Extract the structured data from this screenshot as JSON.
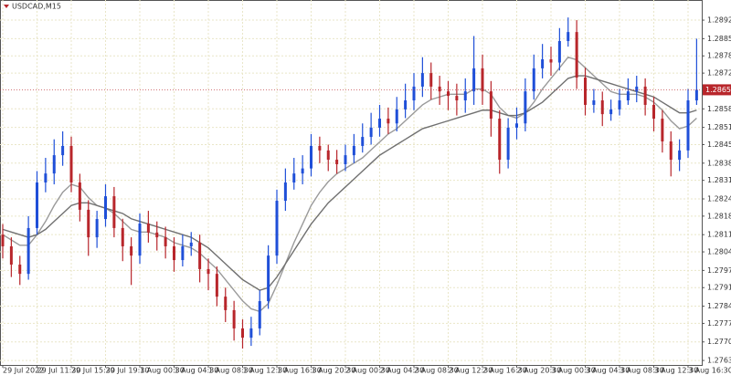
{
  "chart_data": {
    "type": "ohlc",
    "title": "USDCAD,M15",
    "categories": [
      "29 Jul 2022",
      null,
      null,
      null,
      "29 Jul 11:30",
      null,
      null,
      null,
      "29 Jul 15:30",
      null,
      null,
      null,
      "29 Jul 19:30",
      null,
      null,
      null,
      "1 Aug 00:30",
      null,
      null,
      null,
      "1 Aug 04:30",
      null,
      null,
      null,
      "1 Aug 08:30",
      null,
      null,
      null,
      "1 Aug 12:30",
      null,
      null,
      null,
      "1 Aug 16:30",
      null,
      null,
      null,
      "1 Aug 20:30",
      null,
      null,
      null,
      "2 Aug 00:30",
      null,
      null,
      null,
      "2 Aug 04:30",
      null,
      null,
      null,
      "2 Aug 08:30",
      null,
      null,
      null,
      "2 Aug 12:30",
      null,
      null,
      null,
      "2 Aug 16:30",
      null,
      null,
      null,
      "2 Aug 20:30",
      null,
      null,
      null,
      "3 Aug 00:30",
      null,
      null,
      null,
      "3 Aug 04:30",
      null,
      null,
      null,
      "3 Aug 08:30",
      null,
      null,
      null,
      "3 Aug 12:30",
      null,
      null,
      null,
      "3 Aug 16:30",
      null
    ],
    "open": [
      1.2811,
      1.28066,
      1.27997,
      1.27962,
      1.28135,
      1.28307,
      1.28341,
      1.2841,
      1.28445,
      1.28307,
      1.28204,
      1.281,
      1.28169,
      1.28255,
      1.28135,
      1.28066,
      1.28031,
      1.28152,
      1.28118,
      1.281,
      1.28066,
      1.28014,
      1.28066,
      1.2808,
      1.2798,
      1.27962,
      1.27876,
      1.27825,
      1.27756,
      1.27721,
      1.27756,
      1.27859,
      1.28031,
      1.28238,
      1.28307,
      1.28341,
      1.2836,
      1.28445,
      1.28428,
      1.28393,
      1.28376,
      1.2841,
      1.28445,
      1.28479,
      1.28514,
      1.28548,
      1.2853,
      1.28583,
      1.28617,
      1.28669,
      1.2872,
      1.28669,
      1.28651,
      1.28634,
      1.28617,
      1.28651,
      1.28738,
      1.28651,
      1.28548,
      1.28393,
      1.28514,
      1.2853,
      1.28651,
      1.28738,
      1.28772,
      1.2876,
      1.28841,
      1.28875,
      1.28703,
      1.286,
      1.28617,
      1.28565,
      1.28583,
      1.28617,
      1.28651,
      1.28669,
      1.286,
      1.28548,
      1.28462,
      1.28393,
      1.28428,
      1.28617
    ],
    "high": [
      1.2815,
      1.281,
      1.2803,
      1.2818,
      1.2835,
      1.284,
      1.2847,
      1.285,
      1.2848,
      1.2834,
      1.2824,
      1.282,
      1.283,
      1.2829,
      1.2817,
      1.281,
      1.2819,
      1.282,
      1.2816,
      1.2814,
      1.281,
      1.2811,
      1.2812,
      1.2811,
      1.2802,
      1.2799,
      1.2791,
      1.2786,
      1.2779,
      1.278,
      1.279,
      1.2807,
      1.2828,
      1.2836,
      1.284,
      1.2841,
      1.2849,
      1.2848,
      1.2845,
      1.2843,
      1.2845,
      1.2849,
      1.2853,
      1.2857,
      1.286,
      1.2859,
      1.2863,
      1.2868,
      1.2872,
      1.2878,
      1.2876,
      1.2871,
      1.2869,
      1.2868,
      1.287,
      1.2886,
      1.2879,
      1.2869,
      1.2858,
      1.2855,
      1.2859,
      1.287,
      1.2879,
      1.2883,
      1.2882,
      1.2889,
      1.2893,
      1.2892,
      1.2874,
      1.2866,
      1.2865,
      1.2862,
      1.2866,
      1.287,
      1.2871,
      1.287,
      1.2863,
      1.2858,
      1.285,
      1.2847,
      1.2866,
      1.2885
    ],
    "low": [
      1.2802,
      1.2795,
      1.2792,
      1.2794,
      1.2811,
      1.2827,
      1.283,
      1.2837,
      1.2827,
      1.2816,
      1.2803,
      1.2806,
      1.2814,
      1.281,
      1.2801,
      1.2792,
      1.28,
      1.2808,
      1.2805,
      1.2802,
      1.2797,
      1.2799,
      1.2803,
      1.2793,
      1.279,
      1.2784,
      1.2778,
      1.2771,
      1.2768,
      1.2769,
      1.2773,
      1.2783,
      1.28,
      1.282,
      1.2828,
      1.283,
      1.2833,
      1.2838,
      1.2835,
      1.2834,
      1.2835,
      1.2838,
      1.2842,
      1.2845,
      1.2848,
      1.2849,
      1.285,
      1.2855,
      1.2858,
      1.2863,
      1.2862,
      1.286,
      1.2858,
      1.2856,
      1.2857,
      1.286,
      1.286,
      1.2848,
      1.2834,
      1.2836,
      1.2847,
      1.285,
      1.2862,
      1.287,
      1.2871,
      1.2873,
      1.2882,
      1.2866,
      1.2856,
      1.2857,
      1.2852,
      1.2854,
      1.2856,
      1.286,
      1.2861,
      1.2856,
      1.285,
      1.2842,
      1.2833,
      1.2835,
      1.284,
      1.286
    ],
    "close": [
      1.28066,
      1.27997,
      1.27962,
      1.28135,
      1.28307,
      1.28341,
      1.2841,
      1.28445,
      1.28307,
      1.28204,
      1.281,
      1.28169,
      1.28255,
      1.28135,
      1.28066,
      1.28031,
      1.28152,
      1.28118,
      1.281,
      1.28066,
      1.28014,
      1.28066,
      1.2808,
      1.2798,
      1.27962,
      1.27876,
      1.27825,
      1.27756,
      1.27721,
      1.27756,
      1.27859,
      1.28031,
      1.28238,
      1.28307,
      1.28341,
      1.2836,
      1.28445,
      1.28428,
      1.28393,
      1.28376,
      1.2841,
      1.28445,
      1.28479,
      1.28514,
      1.28548,
      1.2853,
      1.28583,
      1.28617,
      1.28669,
      1.2872,
      1.28669,
      1.28651,
      1.28634,
      1.28617,
      1.28651,
      1.28738,
      1.28651,
      1.28548,
      1.28393,
      1.28514,
      1.2853,
      1.28651,
      1.28738,
      1.28772,
      1.2876,
      1.28841,
      1.28875,
      1.28703,
      1.286,
      1.28617,
      1.28565,
      1.28583,
      1.28617,
      1.28651,
      1.28669,
      1.286,
      1.28548,
      1.28462,
      1.28393,
      1.28428,
      1.28617,
      1.28657
    ],
    "up_color": "#1f4fd8",
    "down_color": "#b8262b",
    "lines": [
      {
        "color": "#9a9a9a",
        "values": [
          1.2811,
          1.2809,
          1.2807,
          1.2807,
          1.2811,
          1.2816,
          1.2822,
          1.2827,
          1.283,
          1.2829,
          1.2825,
          1.2822,
          1.2821,
          1.2819,
          1.2816,
          1.2813,
          1.2812,
          1.2812,
          1.2811,
          1.281,
          1.2808,
          1.2807,
          1.2806,
          1.2804,
          1.2801,
          1.2798,
          1.2794,
          1.279,
          1.2786,
          1.2783,
          1.2782,
          1.2785,
          1.2792,
          1.28,
          1.2808,
          1.2815,
          1.2822,
          1.2827,
          1.2831,
          1.2834,
          1.2836,
          1.2838,
          1.284,
          1.2843,
          1.2846,
          1.2849,
          1.2851,
          1.2854,
          1.2857,
          1.286,
          1.2862,
          1.2863,
          1.2864,
          1.2864,
          1.2864,
          1.2866,
          1.2866,
          1.2864,
          1.2859,
          1.2856,
          1.2855,
          1.2857,
          1.2861,
          1.2866,
          1.287,
          1.2874,
          1.2878,
          1.2877,
          1.2874,
          1.2871,
          1.2868,
          1.2865,
          1.2864,
          1.2864,
          1.2864,
          1.2863,
          1.2861,
          1.2858,
          1.2854,
          1.2851,
          1.2852,
          1.2855
        ]
      },
      {
        "color": "#707070",
        "values": [
          1.2813,
          1.2812,
          1.2811,
          1.281,
          1.2811,
          1.2813,
          1.2816,
          1.2819,
          1.2822,
          1.2823,
          1.2823,
          1.2822,
          1.2821,
          1.282,
          1.2819,
          1.2817,
          1.2816,
          1.2815,
          1.2814,
          1.2813,
          1.2812,
          1.2811,
          1.281,
          1.2808,
          1.2806,
          1.2803,
          1.28,
          1.2797,
          1.2794,
          1.2792,
          1.279,
          1.2791,
          1.2795,
          1.28,
          1.2805,
          1.281,
          1.2815,
          1.2819,
          1.2823,
          1.2826,
          1.2829,
          1.2832,
          1.2835,
          1.2838,
          1.2841,
          1.2843,
          1.2845,
          1.2847,
          1.2849,
          1.2851,
          1.2852,
          1.2853,
          1.2854,
          1.2855,
          1.2856,
          1.2857,
          1.2858,
          1.2858,
          1.2857,
          1.2856,
          1.2856,
          1.2857,
          1.2859,
          1.2861,
          1.2864,
          1.2867,
          1.287,
          1.2871,
          1.2871,
          1.287,
          1.2869,
          1.2868,
          1.2867,
          1.2866,
          1.2865,
          1.2864,
          1.2863,
          1.2861,
          1.2859,
          1.2857,
          1.2857,
          1.2858
        ]
      }
    ],
    "ylim": [
      1.27618,
      1.28996
    ],
    "yticks": [
      {
        "value": 1.2892,
        "label": "1.28920"
      },
      {
        "value": 1.2885,
        "label": "1.28850"
      },
      1.28785,
      {
        "value": 1.2872,
        "label": "1.28720"
      },
      1.28585,
      1.28515,
      {
        "value": 1.2845,
        "label": "1.28450"
      },
      {
        "value": 1.2838,
        "label": "1.28380"
      },
      1.28315,
      1.28245,
      {
        "value": 1.2818,
        "label": "1.28180"
      },
      {
        "value": 1.2811,
        "label": "1.28110"
      },
      1.28045,
      1.27975,
      {
        "value": 1.2791,
        "label": "1.27910"
      },
      {
        "value": 1.2784,
        "label": "1.27840"
      },
      1.27775,
      1.27705,
      1.27635
    ],
    "current_price": 1.28657,
    "current_price_color": "#b8262b",
    "grid": true
  }
}
